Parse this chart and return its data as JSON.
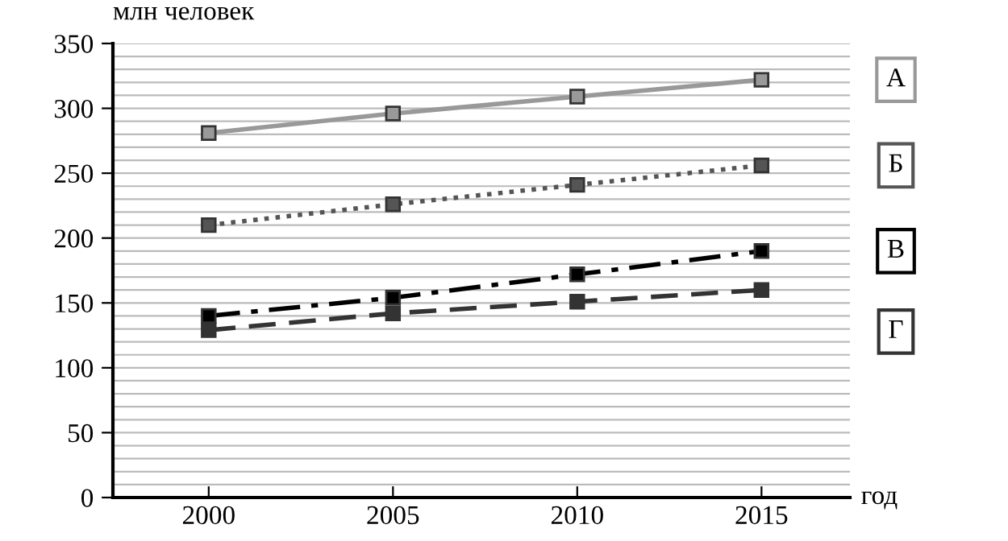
{
  "chart_data": {
    "type": "line",
    "xlabel": "год",
    "ylabel": "млн человек",
    "x": [
      2000,
      2005,
      2010,
      2015
    ],
    "xlim": [
      1997.4,
      2017.4
    ],
    "xticks": [
      2000,
      2005,
      2010,
      2015
    ],
    "ylim": [
      0,
      350
    ],
    "yticks": [
      0,
      {
        "value": 10,
        "label": null
      },
      {
        "value": 20,
        "label": null
      },
      {
        "value": 30,
        "label": null
      },
      {
        "value": 40,
        "label": null
      },
      50,
      {
        "value": 60,
        "label": null
      },
      {
        "value": 70,
        "label": null
      },
      {
        "value": 80,
        "label": null
      },
      {
        "value": 90,
        "label": null
      },
      100,
      {
        "value": 110,
        "label": null
      },
      {
        "value": 120,
        "label": null
      },
      {
        "value": 130,
        "label": null
      },
      {
        "value": 140,
        "label": null
      },
      150,
      {
        "value": 160,
        "label": null
      },
      {
        "value": 170,
        "label": null
      },
      {
        "value": 180,
        "label": null
      },
      {
        "value": 190,
        "label": null
      },
      200,
      {
        "value": 210,
        "label": null
      },
      {
        "value": 220,
        "label": null
      },
      {
        "value": 230,
        "label": null
      },
      {
        "value": 240,
        "label": null
      },
      250,
      {
        "value": 260,
        "label": null
      },
      {
        "value": 270,
        "label": null
      },
      {
        "value": 280,
        "label": null
      },
      {
        "value": 290,
        "label": null
      },
      300,
      {
        "value": 310,
        "label": null
      },
      {
        "value": 320,
        "label": null
      },
      {
        "value": 330,
        "label": null
      },
      {
        "value": 340,
        "label": null
      },
      350
    ],
    "grid": "y",
    "marker": "square",
    "legend": "right",
    "series": [
      {
        "name": "А",
        "color": "#999999",
        "line_style": "solid",
        "values": [
          281,
          296,
          309,
          322
        ]
      },
      {
        "name": "Б",
        "color": "#555555",
        "line_style": "dotted",
        "values": [
          210,
          226,
          241,
          256
        ]
      },
      {
        "name": "В",
        "color": "#000000",
        "line_style": "dashdot",
        "values": [
          140,
          154,
          172,
          190
        ]
      },
      {
        "name": "Г",
        "color": "#333333",
        "line_style": "dashed",
        "values": [
          129,
          142,
          151,
          160
        ]
      }
    ]
  }
}
